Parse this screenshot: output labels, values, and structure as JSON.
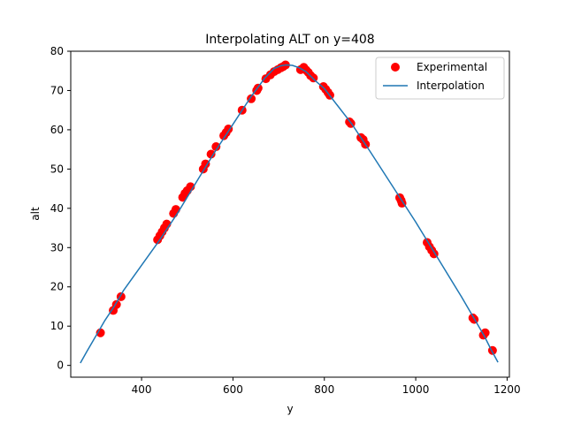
{
  "chart_data": {
    "type": "scatter+line",
    "title": "Interpolating ALT on y=408",
    "xlabel": "y",
    "ylabel": "alt",
    "xlim": [
      245,
      1205
    ],
    "ylim": [
      -3,
      80
    ],
    "xticks": [
      400,
      600,
      800,
      1000,
      1200
    ],
    "yticks": [
      0,
      10,
      20,
      30,
      40,
      50,
      60,
      70,
      80
    ],
    "legend_position": "top-right",
    "colors": {
      "experimental": "#ff0000",
      "interpolation": "#1f77b4"
    },
    "series": [
      {
        "name": "Experimental",
        "kind": "scatter",
        "x": [
          310,
          338,
          345,
          355,
          435,
          440,
          445,
          450,
          455,
          470,
          475,
          490,
          495,
          500,
          507,
          535,
          540,
          552,
          563,
          580,
          585,
          590,
          620,
          640,
          652,
          655,
          672,
          682,
          690,
          698,
          705,
          710,
          715,
          748,
          755,
          760,
          765,
          770,
          776,
          798,
          803,
          808,
          812,
          855,
          858,
          880,
          885,
          890,
          965,
          968,
          970,
          1025,
          1030,
          1035,
          1040,
          1125,
          1128,
          1148,
          1152,
          1168
        ],
        "y": [
          8.3,
          14,
          15.5,
          17.5,
          32,
          33,
          34,
          35,
          36,
          38.7,
          39.7,
          42.8,
          43.8,
          44.5,
          45.5,
          50,
          51.3,
          53.8,
          55.7,
          58.5,
          59.3,
          60.2,
          65,
          67.9,
          70,
          70.6,
          73,
          74,
          74.8,
          75.3,
          75.8,
          76.1,
          76.5,
          75.3,
          75.9,
          75.2,
          74.6,
          73.8,
          73.2,
          71,
          70.3,
          69.5,
          68.8,
          62,
          61.6,
          58,
          57.5,
          56.3,
          42.7,
          42,
          41.3,
          31.3,
          30.2,
          29.3,
          28.4,
          12.1,
          11.7,
          7.7,
          8.3,
          3.8
        ]
      },
      {
        "name": "Interpolation",
        "kind": "line",
        "x": [
          266,
          280,
          300,
          320,
          340,
          360,
          400,
          440,
          480,
          520,
          560,
          600,
          640,
          670,
          690,
          705,
          715,
          730,
          745,
          760,
          780,
          800,
          830,
          860,
          900,
          950,
          1000,
          1050,
          1100,
          1130,
          1150,
          1165,
          1180
        ],
        "y": [
          0.6,
          3.5,
          7.5,
          11.5,
          15,
          19,
          25.5,
          32,
          39,
          46.7,
          54.3,
          61.4,
          68.5,
          73.2,
          75.6,
          76.3,
          76.5,
          76.4,
          75.8,
          74.8,
          72.5,
          70.5,
          66,
          61.5,
          54.5,
          45.5,
          36.5,
          27,
          17.5,
          11.5,
          7.5,
          4,
          0.8
        ]
      }
    ]
  }
}
